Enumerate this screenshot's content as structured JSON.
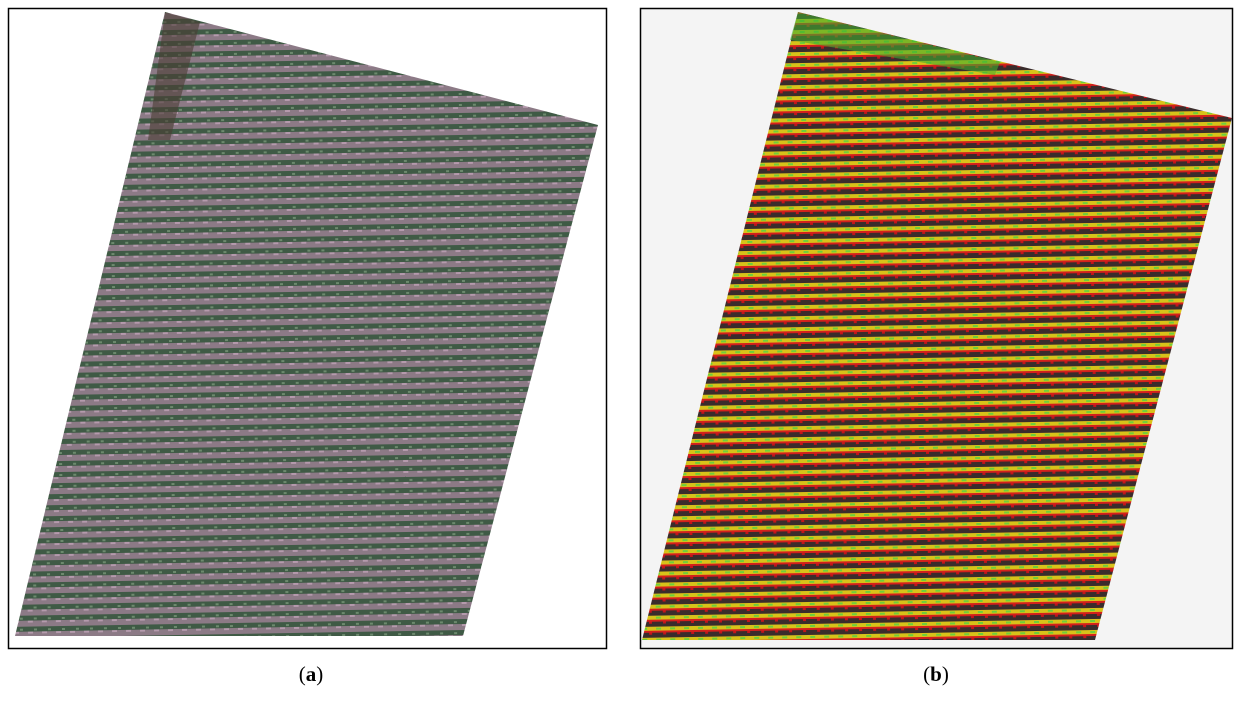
{
  "panels": [
    {
      "label": {
        "open": "(",
        "letter": "a",
        "close": ")"
      }
    },
    {
      "label": {
        "open": "(",
        "letter": "b",
        "close": ")"
      }
    }
  ]
}
